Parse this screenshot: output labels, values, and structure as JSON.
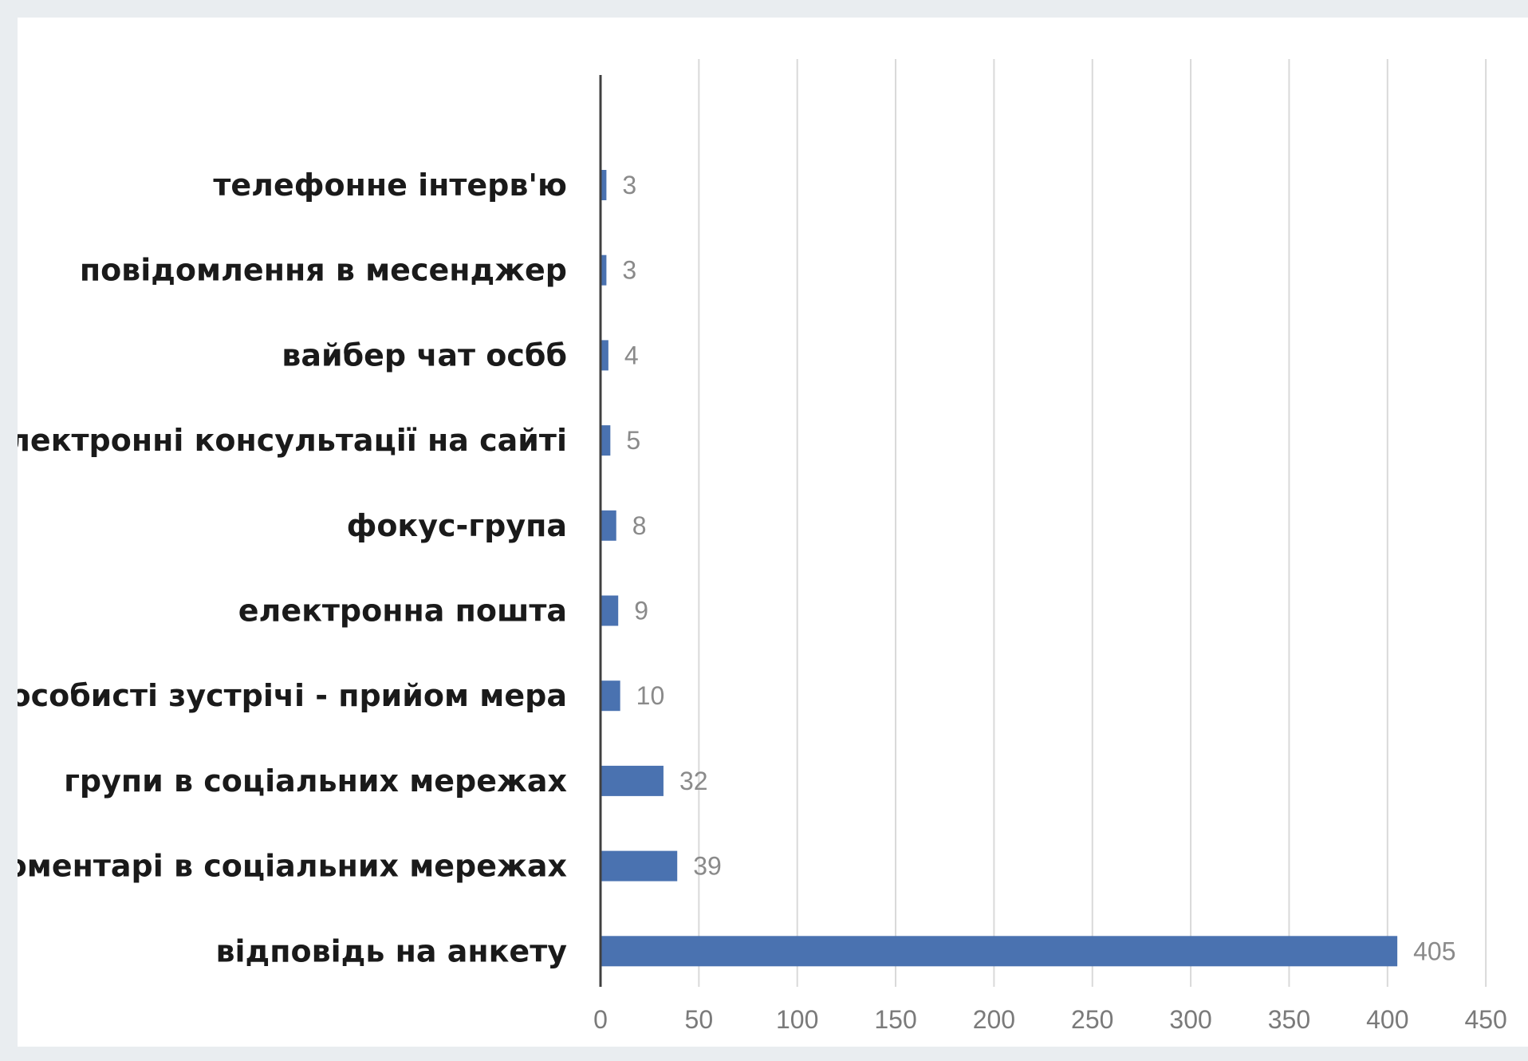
{
  "chart_data": {
    "type": "bar",
    "orientation": "horizontal",
    "categories": [
      "телефонне інтерв'ю",
      "повідомлення в месенджер",
      "вайбер чат осбб",
      "електронні консультації на сайті",
      "фокус-група",
      "електронна пошта",
      "особисті зустрічі - прийом мера",
      "групи в соціальних мережах",
      "коментарі в соціальних мережах",
      "відповідь на анкету"
    ],
    "values": [
      3,
      3,
      4,
      5,
      8,
      9,
      10,
      32,
      39,
      405
    ],
    "data_labels": [
      "3",
      "3",
      "4",
      "5",
      "8",
      "9",
      "10",
      "32",
      "39",
      "405"
    ],
    "xlim": [
      0,
      450
    ],
    "xticks": [
      "0",
      "50",
      "100",
      "150",
      "200",
      "250",
      "300",
      "350",
      "400",
      "450"
    ],
    "title": "",
    "xlabel": "",
    "ylabel": "",
    "grid": "vertical",
    "legend": "none",
    "bar_color": "#4a72b0",
    "gridline_color": "#d9d9d9",
    "axis_color": "#404040"
  }
}
